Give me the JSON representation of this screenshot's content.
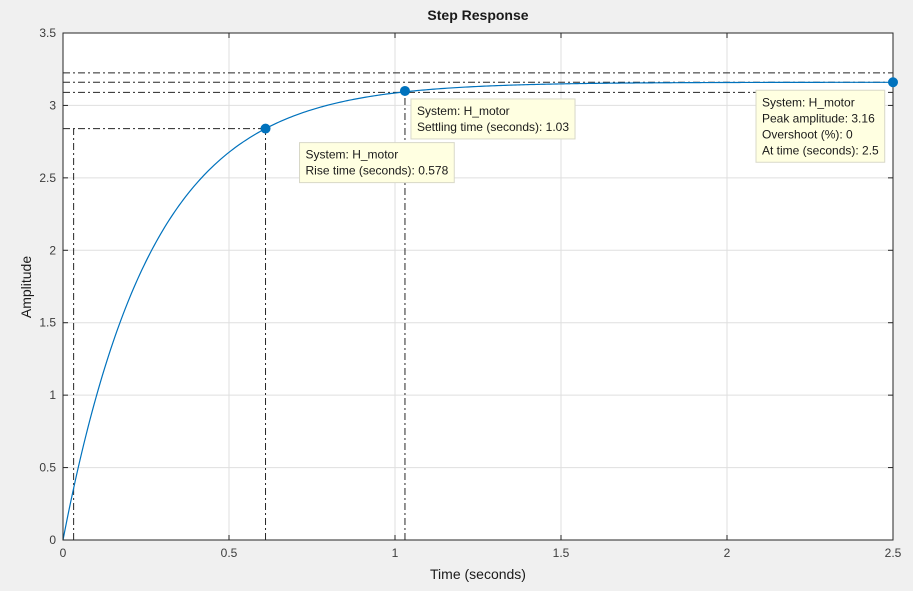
{
  "chart_data": {
    "type": "line",
    "title": "Step Response",
    "xlabel": "Time (seconds)",
    "ylabel": "Amplitude",
    "xlim": [
      0,
      2.5
    ],
    "ylim": [
      0,
      3.5
    ],
    "xticks": [
      0,
      0.5,
      1,
      1.5,
      2,
      2.5
    ],
    "xtick_labels": [
      "0",
      "0.5",
      "1",
      "1.5",
      "2",
      "2.5"
    ],
    "yticks": [
      0,
      0.5,
      1,
      1.5,
      2,
      2.5,
      3,
      3.5
    ],
    "ytick_labels": [
      "0",
      "0.5",
      "1",
      "1.5",
      "2",
      "2.5",
      "3",
      "3.5"
    ],
    "grid": true,
    "colors": {
      "line": "#0072bd",
      "marker": "#0072bd",
      "background": "#f0f0f0",
      "plot_area": "#ffffff",
      "datatip_bg": "#ffffe1",
      "grid": "#dfdfdf"
    },
    "series": [
      {
        "name": "H_motor",
        "x": [
          0,
          0.05,
          0.1,
          0.15,
          0.2,
          0.25,
          0.3,
          0.35,
          0.4,
          0.45,
          0.5,
          0.55,
          0.6,
          0.65,
          0.7,
          0.75,
          0.8,
          0.85,
          0.9,
          0.95,
          1.0,
          1.05,
          1.1,
          1.2,
          1.3,
          1.4,
          1.5,
          1.6,
          1.7,
          1.8,
          1.9,
          2.0,
          2.1,
          2.2,
          2.3,
          2.4,
          2.5
        ],
        "y": [
          0,
          0.69,
          1.24,
          1.67,
          2.01,
          2.28,
          2.49,
          2.65,
          2.78,
          2.88,
          2.94,
          2.99,
          2.84,
          2.875,
          2.91,
          2.945,
          2.98,
          3.01,
          3.04,
          3.07,
          3.09,
          3.1,
          3.11,
          3.125,
          3.135,
          3.142,
          3.147,
          3.151,
          3.154,
          3.156,
          3.157,
          3.158,
          3.159,
          3.1595,
          3.16,
          3.16,
          3.16
        ]
      }
    ],
    "reference_lines": {
      "final_value_low": 3.09,
      "final_value": 3.16,
      "final_value_high": 3.225,
      "rise_low_level": 0.316,
      "rise_high_level": 2.84,
      "rise_start_time": 0.032,
      "rise_end_time": 0.61,
      "settling_time": 1.03,
      "peak_time": 2.5
    },
    "datatips": [
      {
        "x": 0.61,
        "y": 2.84,
        "lines": [
          "System: H_motor",
          "Rise time (seconds): 0.578"
        ]
      },
      {
        "x": 1.03,
        "y": 3.1,
        "lines": [
          "System: H_motor",
          "Settling time (seconds): 1.03"
        ]
      },
      {
        "x": 2.5,
        "y": 3.16,
        "lines": [
          "System: H_motor",
          "Peak amplitude: 3.16",
          "Overshoot (%): 0",
          "At time (seconds): 2.5"
        ]
      }
    ]
  }
}
